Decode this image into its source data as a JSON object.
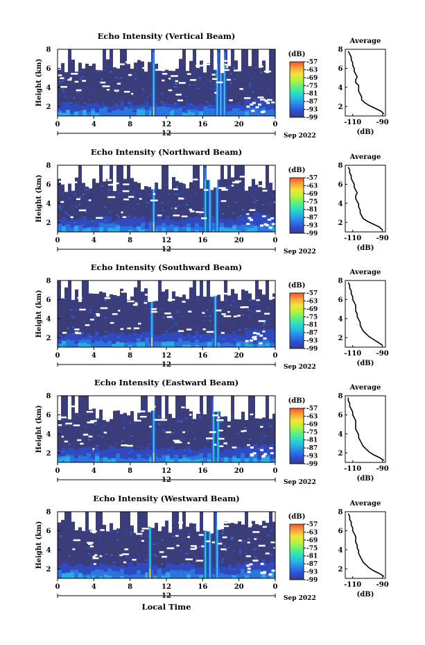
{
  "figure": {
    "xlabel": "Local Time",
    "date_label": "Sep 2022",
    "date_tick": "12"
  },
  "colors": {
    "colormap": [
      "#3b3d7a",
      "#2e4fd6",
      "#2b7fe8",
      "#27b6e6",
      "#2ee0c0",
      "#63f07a",
      "#b8f23a",
      "#f2e43a",
      "#f9a43a",
      "#f2522e"
    ],
    "background": "#3b3d7a",
    "nodata": "#ffffff"
  },
  "chart_data": [
    {
      "type": "heatmap",
      "title": "Echo Intensity (Vertical Beam)",
      "ylabel": "Height (km)",
      "x_ticks": [
        "0",
        "4",
        "8",
        "12",
        "16",
        "20",
        "0"
      ],
      "y_ticks": [
        "2",
        "4",
        "6",
        "8"
      ],
      "xlim": [
        0,
        24
      ],
      "ylim": [
        1,
        8
      ],
      "colorbar_unit": "(dB)",
      "colorbar_ticks": [
        "-57",
        "-63",
        "-69",
        "-75",
        "-81",
        "-87",
        "-93",
        "-99"
      ],
      "color_range": [
        -99,
        -57
      ],
      "features": {
        "spikes": [
          10.6,
          17.6,
          18.0,
          18.4
        ],
        "ground_layer_top_km": 2.3,
        "clear_above_km": 6.2
      },
      "profile": {
        "title": "Average",
        "xlabel": "(dB)",
        "xticks": [
          "-110",
          "-90"
        ],
        "xlim": [
          -115,
          -88
        ],
        "ylim": [
          1,
          8
        ],
        "height_km": [
          1.2,
          1.5,
          1.8,
          2.1,
          2.4,
          2.7,
          3.0,
          3.3,
          3.6,
          3.9,
          4.2,
          4.5,
          4.8,
          5.1,
          5.4,
          5.7,
          6.0,
          6.3,
          6.6,
          6.9,
          7.2,
          7.5,
          7.8
        ],
        "db": [
          -89,
          -91,
          -95,
          -99,
          -102,
          -104,
          -104,
          -105,
          -106,
          -106,
          -106,
          -108,
          -108,
          -107,
          -108,
          -109,
          -109,
          -110,
          -110,
          -111,
          -111,
          -112,
          -113
        ]
      }
    },
    {
      "type": "heatmap",
      "title": "Echo Intensity (Northward Beam)",
      "ylabel": "Height (km)",
      "x_ticks": [
        "0",
        "4",
        "8",
        "12",
        "16",
        "20",
        "0"
      ],
      "y_ticks": [
        "2",
        "4",
        "6",
        "8"
      ],
      "xlim": [
        0,
        24
      ],
      "ylim": [
        1,
        8
      ],
      "colorbar_unit": "(dB)",
      "colorbar_ticks": [
        "-57",
        "-63",
        "-69",
        "-75",
        "-81",
        "-87",
        "-93",
        "-99"
      ],
      "color_range": [
        -99,
        -57
      ],
      "features": {
        "spikes": [
          10.6,
          16.3,
          16.8,
          17.6
        ],
        "ground_layer_top_km": 2.4,
        "clear_above_km": 6.0
      },
      "profile": {
        "title": "Average",
        "xlabel": "(dB)",
        "xticks": [
          "-110",
          "-90"
        ],
        "xlim": [
          -115,
          -88
        ],
        "ylim": [
          1,
          8
        ],
        "height_km": [
          1.2,
          1.5,
          1.8,
          2.1,
          2.4,
          2.7,
          3.0,
          3.3,
          3.6,
          3.9,
          4.2,
          4.5,
          4.8,
          5.1,
          5.4,
          5.7,
          6.0,
          6.3,
          6.6,
          6.9,
          7.2,
          7.5,
          7.8
        ],
        "db": [
          -90,
          -92,
          -96,
          -100,
          -103,
          -104,
          -105,
          -105,
          -106,
          -106,
          -107,
          -108,
          -108,
          -107,
          -108,
          -109,
          -109,
          -110,
          -111,
          -111,
          -112,
          -112,
          -113
        ]
      }
    },
    {
      "type": "heatmap",
      "title": "Echo Intensity (Southward Beam)",
      "ylabel": "Height (km)",
      "x_ticks": [
        "0",
        "4",
        "8",
        "12",
        "16",
        "20",
        "0"
      ],
      "y_ticks": [
        "2",
        "4",
        "6",
        "8"
      ],
      "xlim": [
        0,
        24
      ],
      "ylim": [
        1,
        8
      ],
      "colorbar_unit": "(dB)",
      "colorbar_ticks": [
        "-57",
        "-63",
        "-69",
        "-75",
        "-81",
        "-87",
        "-93",
        "-99"
      ],
      "color_range": [
        -99,
        -57
      ],
      "features": {
        "spikes": [
          10.4,
          17.4
        ],
        "ground_layer_top_km": 2.4,
        "clear_above_km": 6.5
      },
      "profile": {
        "title": "Average",
        "xlabel": "(dB)",
        "xticks": [
          "-110",
          "-90"
        ],
        "xlim": [
          -115,
          -88
        ],
        "ylim": [
          1,
          8
        ],
        "height_km": [
          1.2,
          1.5,
          1.8,
          2.1,
          2.4,
          2.7,
          3.0,
          3.3,
          3.6,
          3.9,
          4.2,
          4.5,
          4.8,
          5.1,
          5.4,
          5.7,
          6.0,
          6.3,
          6.6,
          6.9,
          7.2,
          7.5,
          7.8
        ],
        "db": [
          -90,
          -93,
          -96,
          -99,
          -101,
          -103,
          -104,
          -105,
          -105,
          -106,
          -107,
          -107,
          -108,
          -108,
          -108,
          -109,
          -110,
          -110,
          -111,
          -111,
          -112,
          -112,
          -113
        ]
      }
    },
    {
      "type": "heatmap",
      "title": "Echo Intensity (Eastward Beam)",
      "ylabel": "Height (km)",
      "x_ticks": [
        "0",
        "4",
        "8",
        "12",
        "16",
        "20",
        "0"
      ],
      "y_ticks": [
        "2",
        "4",
        "6",
        "8"
      ],
      "xlim": [
        0,
        24
      ],
      "ylim": [
        1,
        8
      ],
      "colorbar_unit": "(dB)",
      "colorbar_ticks": [
        "-57",
        "-63",
        "-69",
        "-75",
        "-81",
        "-87",
        "-93",
        "-99"
      ],
      "color_range": [
        -99,
        -57
      ],
      "features": {
        "spikes": [
          10.6,
          17.2,
          17.7
        ],
        "ground_layer_top_km": 2.4,
        "clear_above_km": 6.0
      },
      "profile": {
        "title": "Average",
        "xlabel": "(dB)",
        "xticks": [
          "-110",
          "-90"
        ],
        "xlim": [
          -115,
          -88
        ],
        "ylim": [
          1,
          8
        ],
        "height_km": [
          1.2,
          1.5,
          1.8,
          2.1,
          2.4,
          2.7,
          3.0,
          3.3,
          3.6,
          3.9,
          4.2,
          4.5,
          4.8,
          5.1,
          5.4,
          5.7,
          6.0,
          6.3,
          6.6,
          6.9,
          7.2,
          7.5,
          7.8
        ],
        "db": [
          -89,
          -92,
          -96,
          -99,
          -101,
          -103,
          -104,
          -105,
          -106,
          -106,
          -107,
          -108,
          -108,
          -108,
          -108,
          -109,
          -110,
          -110,
          -111,
          -112,
          -112,
          -113,
          -113
        ]
      }
    },
    {
      "type": "heatmap",
      "title": "Echo Intensity (Westward Beam)",
      "ylabel": "Height (km)",
      "x_ticks": [
        "0",
        "4",
        "8",
        "12",
        "16",
        "20",
        "0"
      ],
      "y_ticks": [
        "2",
        "4",
        "6",
        "8"
      ],
      "xlim": [
        0,
        24
      ],
      "ylim": [
        1,
        8
      ],
      "colorbar_unit": "(dB)",
      "colorbar_ticks": [
        "-57",
        "-63",
        "-69",
        "-75",
        "-81",
        "-87",
        "-93",
        "-99"
      ],
      "color_range": [
        -99,
        -57
      ],
      "features": {
        "spikes": [
          10.2,
          16.3,
          16.8,
          17.6
        ],
        "ground_layer_top_km": 2.4,
        "clear_above_km": 6.4
      },
      "profile": {
        "title": "Average",
        "xlabel": "(dB)",
        "xticks": [
          "-110",
          "-90"
        ],
        "xlim": [
          -115,
          -88
        ],
        "ylim": [
          1,
          8
        ],
        "height_km": [
          1.2,
          1.5,
          1.8,
          2.1,
          2.4,
          2.7,
          3.0,
          3.3,
          3.6,
          3.9,
          4.2,
          4.5,
          4.8,
          5.1,
          5.4,
          5.7,
          6.0,
          6.3,
          6.6,
          6.9,
          7.2,
          7.5,
          7.8
        ],
        "db": [
          -89,
          -92,
          -96,
          -99,
          -101,
          -103,
          -104,
          -105,
          -106,
          -106,
          -107,
          -107,
          -108,
          -108,
          -108,
          -109,
          -110,
          -110,
          -111,
          -111,
          -112,
          -112,
          -113
        ]
      }
    }
  ]
}
